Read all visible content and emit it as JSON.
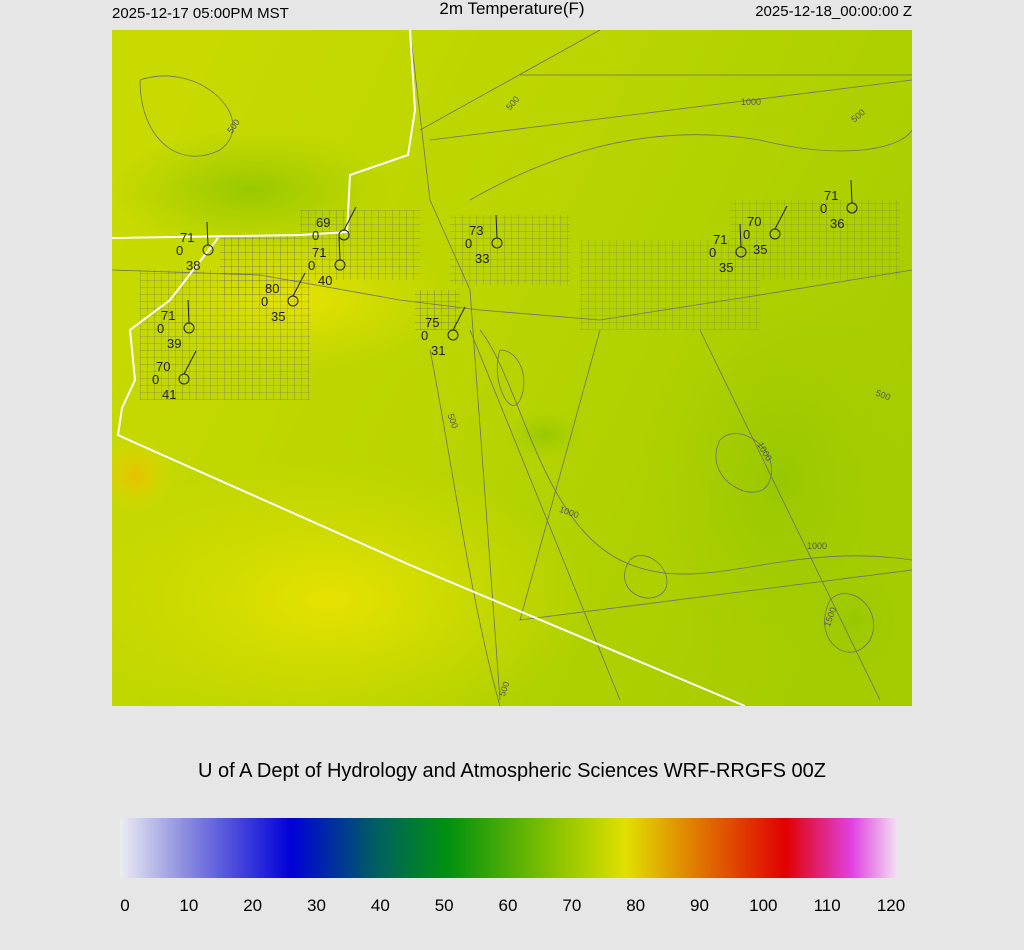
{
  "header": {
    "left": "2025-12-17 05:00PM MST",
    "title": "2m Temperature(F)",
    "right": "2025-12-18_00:00:00 Z"
  },
  "map": {
    "stations": [
      {
        "temp": 71,
        "wind": 0,
        "dew": 38
      },
      {
        "temp": 69,
        "wind": 0
      },
      {
        "temp": 71,
        "wind": 0,
        "dew": 40
      },
      {
        "temp": 80,
        "wind": 0,
        "dew": 35
      },
      {
        "temp": 71,
        "wind": 0,
        "dew": 39
      },
      {
        "temp": 70,
        "wind": 0,
        "dew": 41
      },
      {
        "temp": 73,
        "wind": 0,
        "dew": 33
      },
      {
        "temp": 75,
        "wind": 0,
        "dew": 31
      },
      {
        "temp": 71,
        "wind": 0,
        "dew": 35
      },
      {
        "temp": 70,
        "wind": 0,
        "dew": 35
      },
      {
        "temp": 71,
        "wind": 0,
        "dew": 36
      }
    ],
    "contour_labels": [
      500,
      500,
      1000,
      500,
      500,
      500,
      1000,
      1000,
      1000,
      1500,
      500
    ]
  },
  "credit": "U of A Dept of Hydrology and Atmospheric Sciences WRF-RRGFS 00Z",
  "colorbar": {
    "ticks": [
      0,
      10,
      20,
      30,
      40,
      50,
      60,
      70,
      80,
      90,
      100,
      110,
      120
    ]
  }
}
